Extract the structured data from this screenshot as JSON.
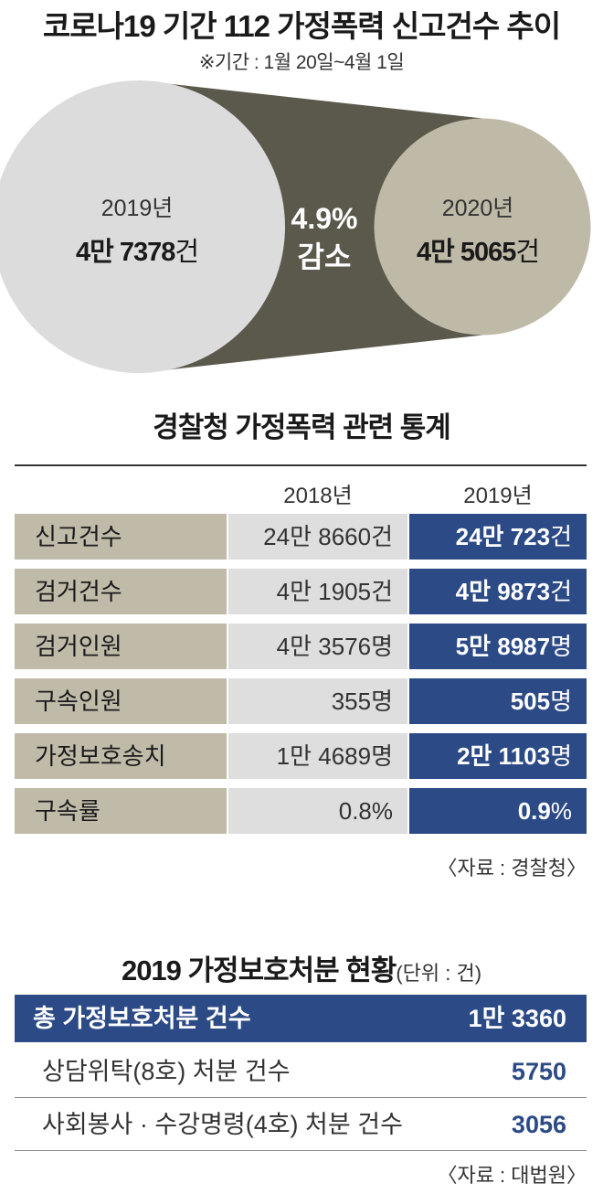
{
  "header": {
    "title": "코로나19 기간 112 가정폭력 신고건수 추이",
    "subtitle": "※기간 : 1월 20일~4월 1일"
  },
  "chart_data": {
    "type": "bubble-comparison",
    "title": "코로나19 기간 112 가정폭력 신고건수 추이",
    "subtitle": "※기간 : 1월 20일~4월 1일",
    "categories": [
      "2019년",
      "2020년"
    ],
    "values": [
      47378,
      45065
    ],
    "value_labels": [
      {
        "man": "4만",
        "rest": "7378",
        "unit": "건"
      },
      {
        "man": "4만",
        "rest": "5065",
        "unit": "건"
      }
    ],
    "change_label": "4.9%",
    "change_word": "감소",
    "colors": {
      "left": "#dcdcdc",
      "right": "#bfb9a7",
      "connector": "#5b584c"
    }
  },
  "police_stats": {
    "title": "경찰청 가정폭력 관련 통계",
    "columns": [
      "2018년",
      "2019년"
    ],
    "rows": [
      {
        "label": "신고건수",
        "y2018": "24만 8660건",
        "y2019_a": "24만 723",
        "y2019_b": "건"
      },
      {
        "label": "검거건수",
        "y2018": "4만 1905건",
        "y2019_a": "4만 9873",
        "y2019_b": "건"
      },
      {
        "label": "검거인원",
        "y2018": "4만 3576명",
        "y2019_a": "5만 8987",
        "y2019_b": "명"
      },
      {
        "label": "구속인원",
        "y2018": "355명",
        "y2019_a": "505",
        "y2019_b": "명"
      },
      {
        "label": "가정보호송치",
        "y2018": "1만 4689명",
        "y2019_a": "2만 1103",
        "y2019_b": "명"
      },
      {
        "label": "구속률",
        "y2018": "0.8%",
        "y2019_a": "0.9",
        "y2019_b": "%"
      }
    ],
    "source": "〈자료 : 경찰청〉",
    "colors": {
      "label_bg": "#c0baa8",
      "y2018_bg": "#dedede",
      "y2019_bg": "#2c4b86"
    }
  },
  "protection": {
    "title": "2019 가정보호처분 현황",
    "unit_note": "(단위 : 건)",
    "total": {
      "label": "총 가정보호처분 건수",
      "value": "1만 3360"
    },
    "items": [
      {
        "label": "상담위탁(8호) 처분 건수",
        "value": "5750"
      },
      {
        "label": "사회봉사 · 수강명령(4호) 처분 건수",
        "value": "3056"
      }
    ],
    "source": "〈자료 : 대법원〉",
    "colors": {
      "accent": "#2c4b86"
    }
  }
}
